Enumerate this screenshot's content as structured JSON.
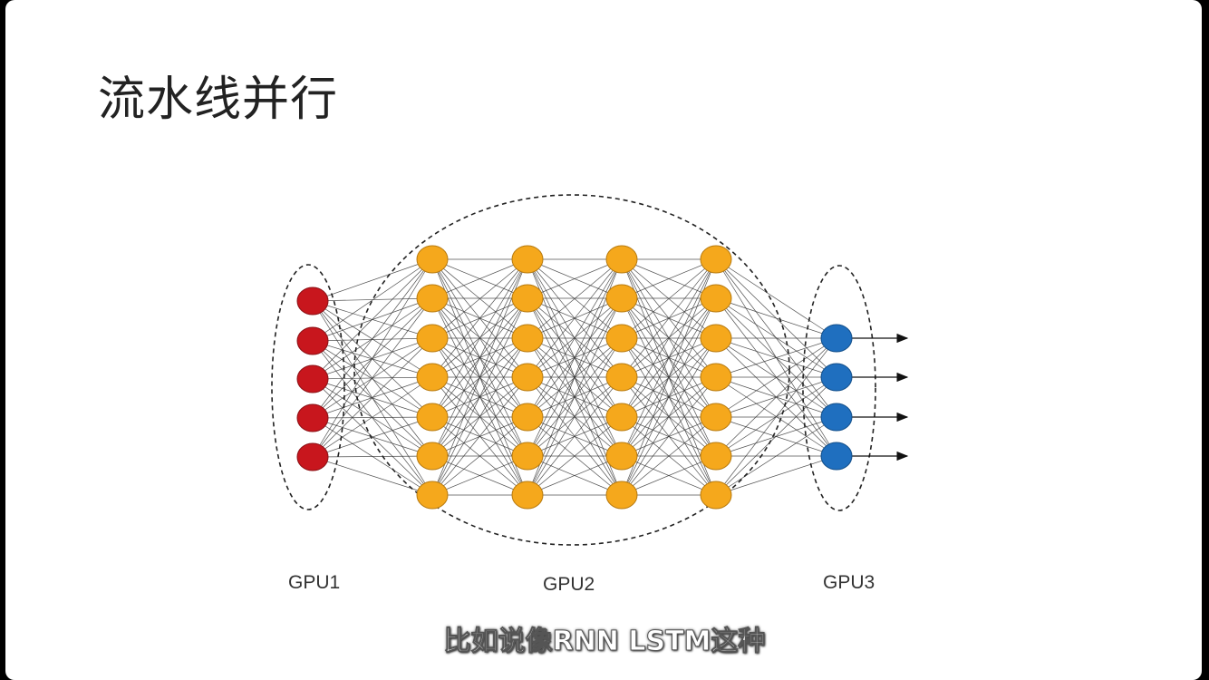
{
  "slide": {
    "title": "流水线并行",
    "subtitle": "比如说像RNN  LSTM这种"
  },
  "diagram": {
    "layers": [
      {
        "group": "GPU1",
        "nodes": 5,
        "color": "#c8161d"
      },
      {
        "group": "GPU2",
        "nodes": 7,
        "color": "#f5a81c"
      },
      {
        "group": "GPU2",
        "nodes": 7,
        "color": "#f5a81c"
      },
      {
        "group": "GPU2",
        "nodes": 7,
        "color": "#f5a81c"
      },
      {
        "group": "GPU2",
        "nodes": 7,
        "color": "#f5a81c"
      },
      {
        "group": "GPU3",
        "nodes": 4,
        "color": "#1f6fbf"
      }
    ],
    "output_arrows": 4,
    "groups": [
      {
        "label": "GPU1"
      },
      {
        "label": "GPU2"
      },
      {
        "label": "GPU3"
      }
    ],
    "colors": {
      "edge": "#333333",
      "node_stroke_red": "#8a0f14",
      "node_stroke_orange": "#b77a0f",
      "node_stroke_blue": "#134f8a",
      "dashed_boundary": "#222222"
    }
  }
}
